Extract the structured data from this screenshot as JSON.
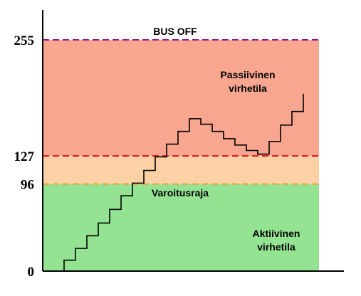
{
  "chart_data": {
    "type": "line",
    "title": "",
    "xlabel": "",
    "ylabel": "",
    "ylim": [
      0,
      255
    ],
    "yticks": [
      {
        "value": 0,
        "label": "0"
      },
      {
        "value": 96,
        "label": "96"
      },
      {
        "value": 127,
        "label": "127"
      },
      {
        "value": 255,
        "label": "255"
      }
    ],
    "bands": [
      {
        "from": 0,
        "to": 96,
        "color": "#93e393",
        "label": [
          "Aktiivinen",
          "virhetila"
        ]
      },
      {
        "from": 96,
        "to": 127,
        "color": "#fcd1a6",
        "label": [
          "Varoitusraja"
        ]
      },
      {
        "from": 127,
        "to": 255,
        "color": "#f8a690",
        "label": [
          "Passiivinen",
          "virhetila"
        ]
      }
    ],
    "thresholds": [
      {
        "value": 255,
        "color": "#8b1a8b",
        "label": "BUS OFF"
      },
      {
        "value": 127,
        "color": "#e01010",
        "label": ""
      },
      {
        "value": 96,
        "color": "#f0a040",
        "label": ""
      }
    ],
    "series": [
      {
        "x": [
          0,
          1,
          2,
          3,
          4,
          5,
          6,
          7,
          8,
          9,
          10,
          11,
          12,
          13,
          14,
          15,
          16,
          17,
          18,
          19,
          20,
          21,
          22
        ],
        "values": [
          0,
          12,
          25,
          39,
          53,
          68,
          83,
          97,
          111,
          126,
          140,
          154,
          168,
          162,
          154,
          146,
          139,
          133,
          129,
          143,
          161,
          176,
          195
        ]
      }
    ],
    "color": "#000000"
  }
}
